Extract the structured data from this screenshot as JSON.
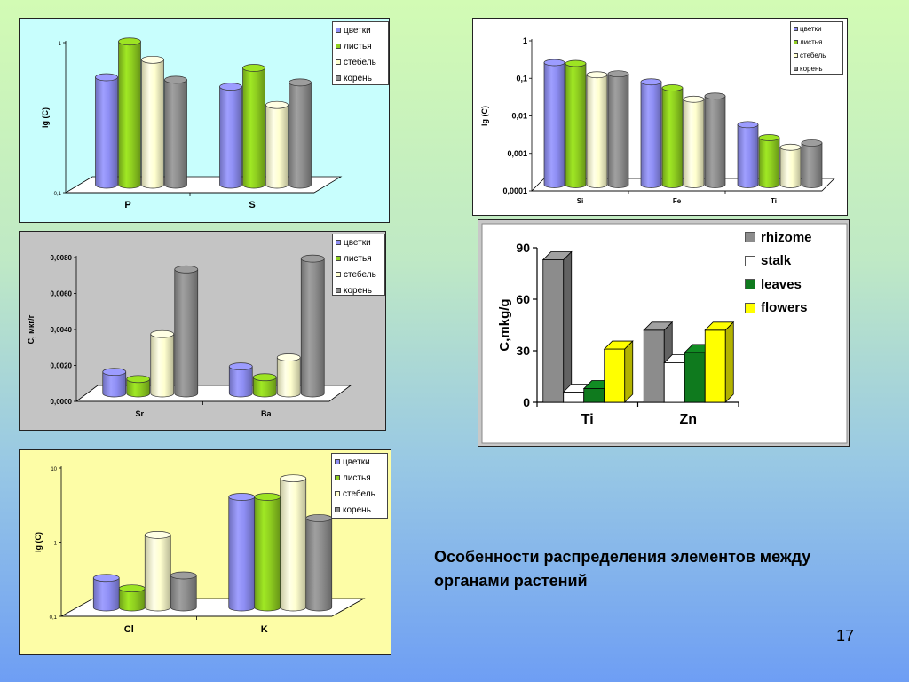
{
  "slide": {
    "caption": "Особенности распределения элементов между органами растений",
    "page_number": "17"
  },
  "colors": {
    "flowers": "#8e8ef4",
    "leaves": "#8fcf20",
    "stem": "#ffffcf",
    "root": "#8f8f8f",
    "rhizome": "#8c8c8c",
    "stalk": "#ffffff",
    "leaves_en": "#0f7a1e",
    "flowers_en": "#ffff00"
  },
  "chart_data": [
    {
      "id": "p1",
      "type": "bar",
      "scale": "log",
      "ylabel": "lg (C)",
      "ylim": [
        0.1,
        1
      ],
      "yticks": [
        "1",
        "0,1"
      ],
      "categories": [
        "P",
        "S"
      ],
      "series": [
        {
          "name": "цветки",
          "color_key": "flowers",
          "values": [
            0.52,
            0.45
          ]
        },
        {
          "name": "листья",
          "color_key": "leaves",
          "values": [
            0.9,
            0.6
          ]
        },
        {
          "name": "стебель",
          "color_key": "stem",
          "values": [
            0.68,
            0.34
          ]
        },
        {
          "name": "корень",
          "color_key": "root",
          "values": [
            0.5,
            0.48
          ]
        }
      ]
    },
    {
      "id": "p2",
      "type": "bar",
      "scale": "log",
      "ylabel": "lg (C)",
      "ylim": [
        0.0001,
        1
      ],
      "yticks": [
        "1",
        "0,1",
        "0,01",
        "0,001",
        "0,0001"
      ],
      "categories": [
        "Si",
        "Fe",
        "Ti"
      ],
      "series": [
        {
          "name": "цветки",
          "color_key": "flowers",
          "values": [
            0.18,
            0.055,
            0.004
          ]
        },
        {
          "name": "листья",
          "color_key": "leaves",
          "values": [
            0.17,
            0.038,
            0.0018
          ]
        },
        {
          "name": "стебель",
          "color_key": "stem",
          "values": [
            0.085,
            0.019,
            0.001
          ]
        },
        {
          "name": "корень",
          "color_key": "root",
          "values": [
            0.09,
            0.023,
            0.0013
          ]
        }
      ]
    },
    {
      "id": "p3",
      "type": "bar",
      "scale": "linear",
      "ylabel": "С, мкг/г",
      "ylim": [
        0,
        0.008
      ],
      "yticks": [
        "0,0080",
        "0,0060",
        "0,0040",
        "0,0020",
        "0,0000"
      ],
      "categories": [
        "Sr",
        "Ba"
      ],
      "series": [
        {
          "name": "цветки",
          "color_key": "flowers",
          "values": [
            0.0012,
            0.0015
          ]
        },
        {
          "name": "листья",
          "color_key": "leaves",
          "values": [
            0.0008,
            0.0009
          ]
        },
        {
          "name": "стебель",
          "color_key": "stem",
          "values": [
            0.0033,
            0.002
          ]
        },
        {
          "name": "корень",
          "color_key": "root",
          "values": [
            0.0069,
            0.0075
          ]
        }
      ]
    },
    {
      "id": "p4",
      "type": "bar",
      "scale": "linear",
      "ylabel": "C,mkg/g",
      "ylim": [
        0,
        90
      ],
      "yticks": [
        "90",
        "60",
        "30",
        "0"
      ],
      "categories": [
        "Ti",
        "Zn"
      ],
      "series": [
        {
          "name": "rhizome",
          "color_key": "rhizome",
          "values": [
            83,
            42
          ]
        },
        {
          "name": "stalk",
          "color_key": "stalk",
          "values": [
            6,
            23
          ]
        },
        {
          "name": "leaves",
          "color_key": "leaves_en",
          "values": [
            8,
            29
          ]
        },
        {
          "name": "flowers",
          "color_key": "flowers_en",
          "values": [
            31,
            42
          ]
        }
      ]
    },
    {
      "id": "p5",
      "type": "bar",
      "scale": "log",
      "ylabel": "lg (C)",
      "ylim": [
        0.1,
        10
      ],
      "yticks": [
        "10",
        "1",
        "0,1"
      ],
      "categories": [
        "Cl",
        "K"
      ],
      "series": [
        {
          "name": "цветки",
          "color_key": "flowers",
          "values": [
            0.25,
            3.1
          ]
        },
        {
          "name": "листья",
          "color_key": "leaves",
          "values": [
            0.18,
            3.1
          ]
        },
        {
          "name": "стебель",
          "color_key": "stem",
          "values": [
            0.95,
            5.5
          ]
        },
        {
          "name": "корень",
          "color_key": "root",
          "values": [
            0.27,
            1.6
          ]
        }
      ]
    }
  ]
}
